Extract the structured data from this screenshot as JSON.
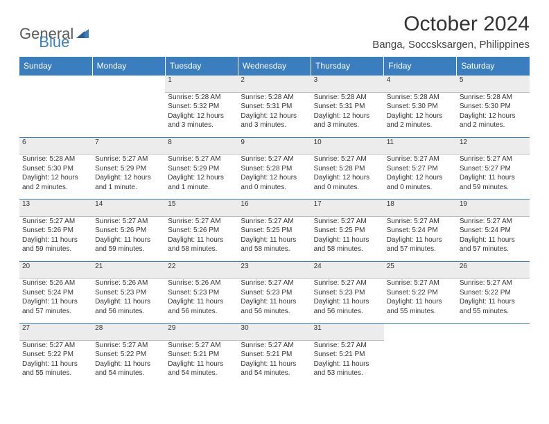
{
  "logo": {
    "part1": "General",
    "part2": "Blue"
  },
  "title": "October 2024",
  "subtitle": "Banga, Soccsksargen, Philippines",
  "colors": {
    "header_bg": "#3a7ebf",
    "header_text": "#ffffff",
    "daynum_bg": "#ececec",
    "daynum_border_top": "#3a7ebf",
    "body_text": "#333333",
    "logo_gray": "#5a5a5a",
    "logo_blue": "#3a7ebf"
  },
  "weekdays": [
    "Sunday",
    "Monday",
    "Tuesday",
    "Wednesday",
    "Thursday",
    "Friday",
    "Saturday"
  ],
  "weeks": [
    {
      "nums": [
        "",
        "",
        "1",
        "2",
        "3",
        "4",
        "5"
      ],
      "cells": [
        {
          "empty": true
        },
        {
          "empty": true
        },
        {
          "sunrise": "Sunrise: 5:28 AM",
          "sunset": "Sunset: 5:32 PM",
          "day": "Daylight: 12 hours and 3 minutes."
        },
        {
          "sunrise": "Sunrise: 5:28 AM",
          "sunset": "Sunset: 5:31 PM",
          "day": "Daylight: 12 hours and 3 minutes."
        },
        {
          "sunrise": "Sunrise: 5:28 AM",
          "sunset": "Sunset: 5:31 PM",
          "day": "Daylight: 12 hours and 3 minutes."
        },
        {
          "sunrise": "Sunrise: 5:28 AM",
          "sunset": "Sunset: 5:30 PM",
          "day": "Daylight: 12 hours and 2 minutes."
        },
        {
          "sunrise": "Sunrise: 5:28 AM",
          "sunset": "Sunset: 5:30 PM",
          "day": "Daylight: 12 hours and 2 minutes."
        }
      ]
    },
    {
      "nums": [
        "6",
        "7",
        "8",
        "9",
        "10",
        "11",
        "12"
      ],
      "cells": [
        {
          "sunrise": "Sunrise: 5:28 AM",
          "sunset": "Sunset: 5:30 PM",
          "day": "Daylight: 12 hours and 2 minutes."
        },
        {
          "sunrise": "Sunrise: 5:27 AM",
          "sunset": "Sunset: 5:29 PM",
          "day": "Daylight: 12 hours and 1 minute."
        },
        {
          "sunrise": "Sunrise: 5:27 AM",
          "sunset": "Sunset: 5:29 PM",
          "day": "Daylight: 12 hours and 1 minute."
        },
        {
          "sunrise": "Sunrise: 5:27 AM",
          "sunset": "Sunset: 5:28 PM",
          "day": "Daylight: 12 hours and 0 minutes."
        },
        {
          "sunrise": "Sunrise: 5:27 AM",
          "sunset": "Sunset: 5:28 PM",
          "day": "Daylight: 12 hours and 0 minutes."
        },
        {
          "sunrise": "Sunrise: 5:27 AM",
          "sunset": "Sunset: 5:27 PM",
          "day": "Daylight: 12 hours and 0 minutes."
        },
        {
          "sunrise": "Sunrise: 5:27 AM",
          "sunset": "Sunset: 5:27 PM",
          "day": "Daylight: 11 hours and 59 minutes."
        }
      ]
    },
    {
      "nums": [
        "13",
        "14",
        "15",
        "16",
        "17",
        "18",
        "19"
      ],
      "cells": [
        {
          "sunrise": "Sunrise: 5:27 AM",
          "sunset": "Sunset: 5:26 PM",
          "day": "Daylight: 11 hours and 59 minutes."
        },
        {
          "sunrise": "Sunrise: 5:27 AM",
          "sunset": "Sunset: 5:26 PM",
          "day": "Daylight: 11 hours and 59 minutes."
        },
        {
          "sunrise": "Sunrise: 5:27 AM",
          "sunset": "Sunset: 5:26 PM",
          "day": "Daylight: 11 hours and 58 minutes."
        },
        {
          "sunrise": "Sunrise: 5:27 AM",
          "sunset": "Sunset: 5:25 PM",
          "day": "Daylight: 11 hours and 58 minutes."
        },
        {
          "sunrise": "Sunrise: 5:27 AM",
          "sunset": "Sunset: 5:25 PM",
          "day": "Daylight: 11 hours and 58 minutes."
        },
        {
          "sunrise": "Sunrise: 5:27 AM",
          "sunset": "Sunset: 5:24 PM",
          "day": "Daylight: 11 hours and 57 minutes."
        },
        {
          "sunrise": "Sunrise: 5:27 AM",
          "sunset": "Sunset: 5:24 PM",
          "day": "Daylight: 11 hours and 57 minutes."
        }
      ]
    },
    {
      "nums": [
        "20",
        "21",
        "22",
        "23",
        "24",
        "25",
        "26"
      ],
      "cells": [
        {
          "sunrise": "Sunrise: 5:26 AM",
          "sunset": "Sunset: 5:24 PM",
          "day": "Daylight: 11 hours and 57 minutes."
        },
        {
          "sunrise": "Sunrise: 5:26 AM",
          "sunset": "Sunset: 5:23 PM",
          "day": "Daylight: 11 hours and 56 minutes."
        },
        {
          "sunrise": "Sunrise: 5:26 AM",
          "sunset": "Sunset: 5:23 PM",
          "day": "Daylight: 11 hours and 56 minutes."
        },
        {
          "sunrise": "Sunrise: 5:27 AM",
          "sunset": "Sunset: 5:23 PM",
          "day": "Daylight: 11 hours and 56 minutes."
        },
        {
          "sunrise": "Sunrise: 5:27 AM",
          "sunset": "Sunset: 5:23 PM",
          "day": "Daylight: 11 hours and 56 minutes."
        },
        {
          "sunrise": "Sunrise: 5:27 AM",
          "sunset": "Sunset: 5:22 PM",
          "day": "Daylight: 11 hours and 55 minutes."
        },
        {
          "sunrise": "Sunrise: 5:27 AM",
          "sunset": "Sunset: 5:22 PM",
          "day": "Daylight: 11 hours and 55 minutes."
        }
      ]
    },
    {
      "nums": [
        "27",
        "28",
        "29",
        "30",
        "31",
        "",
        ""
      ],
      "cells": [
        {
          "sunrise": "Sunrise: 5:27 AM",
          "sunset": "Sunset: 5:22 PM",
          "day": "Daylight: 11 hours and 55 minutes."
        },
        {
          "sunrise": "Sunrise: 5:27 AM",
          "sunset": "Sunset: 5:22 PM",
          "day": "Daylight: 11 hours and 54 minutes."
        },
        {
          "sunrise": "Sunrise: 5:27 AM",
          "sunset": "Sunset: 5:21 PM",
          "day": "Daylight: 11 hours and 54 minutes."
        },
        {
          "sunrise": "Sunrise: 5:27 AM",
          "sunset": "Sunset: 5:21 PM",
          "day": "Daylight: 11 hours and 54 minutes."
        },
        {
          "sunrise": "Sunrise: 5:27 AM",
          "sunset": "Sunset: 5:21 PM",
          "day": "Daylight: 11 hours and 53 minutes."
        },
        {
          "empty": true
        },
        {
          "empty": true
        }
      ]
    }
  ]
}
